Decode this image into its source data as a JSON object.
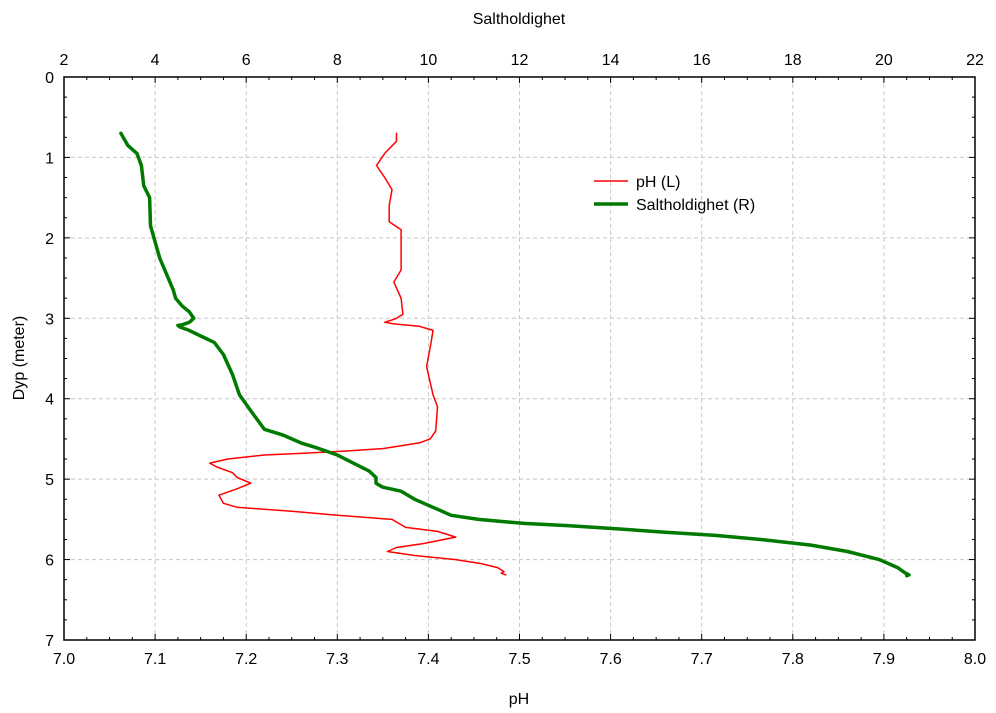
{
  "chart_data": {
    "type": "line",
    "title": "",
    "xlabel": "pH",
    "x2label": "Saltholdighet",
    "ylabel": "Dyp (meter)",
    "xlim": [
      7.0,
      8.0
    ],
    "x2lim": [
      2,
      22
    ],
    "ylim": [
      0,
      7
    ],
    "y_inverted": true,
    "grid": true,
    "legend_position": "top-right",
    "x_ticks": [
      "7.0",
      "7.1",
      "7.2",
      "7.3",
      "7.4",
      "7.5",
      "7.6",
      "7.7",
      "7.8",
      "7.9",
      "8.0"
    ],
    "x_ticks_values": [
      7.0,
      7.1,
      7.2,
      7.3,
      7.4,
      7.5,
      7.6,
      7.7,
      7.8,
      7.9,
      8.0
    ],
    "x2_ticks": [
      "2",
      "4",
      "6",
      "8",
      "10",
      "12",
      "14",
      "16",
      "18",
      "20",
      "22"
    ],
    "x2_ticks_values": [
      2,
      4,
      6,
      8,
      10,
      12,
      14,
      16,
      18,
      20,
      22
    ],
    "y_ticks": [
      "0",
      "1",
      "2",
      "3",
      "4",
      "5",
      "6",
      "7"
    ],
    "y_ticks_values": [
      0,
      1,
      2,
      3,
      4,
      5,
      6,
      7
    ],
    "series": [
      {
        "name": "pH (L)",
        "axis": "bottom",
        "color": "#ff0000",
        "width": 1.5,
        "points": [
          [
            7.365,
            0.7
          ],
          [
            7.365,
            0.8
          ],
          [
            7.352,
            0.95
          ],
          [
            7.343,
            1.1
          ],
          [
            7.352,
            1.25
          ],
          [
            7.36,
            1.4
          ],
          [
            7.357,
            1.6
          ],
          [
            7.357,
            1.8
          ],
          [
            7.37,
            1.9
          ],
          [
            7.37,
            2.4
          ],
          [
            7.362,
            2.55
          ],
          [
            7.37,
            2.75
          ],
          [
            7.372,
            2.95
          ],
          [
            7.365,
            3.0
          ],
          [
            7.36,
            3.02
          ],
          [
            7.352,
            3.05
          ],
          [
            7.362,
            3.07
          ],
          [
            7.39,
            3.1
          ],
          [
            7.405,
            3.15
          ],
          [
            7.403,
            3.3
          ],
          [
            7.398,
            3.6
          ],
          [
            7.405,
            3.95
          ],
          [
            7.41,
            4.1
          ],
          [
            7.408,
            4.4
          ],
          [
            7.402,
            4.5
          ],
          [
            7.39,
            4.55
          ],
          [
            7.35,
            4.62
          ],
          [
            7.31,
            4.65
          ],
          [
            7.26,
            4.68
          ],
          [
            7.22,
            4.7
          ],
          [
            7.18,
            4.75
          ],
          [
            7.16,
            4.8
          ],
          [
            7.168,
            4.85
          ],
          [
            7.185,
            4.92
          ],
          [
            7.19,
            4.98
          ],
          [
            7.205,
            5.05
          ],
          [
            7.19,
            5.12
          ],
          [
            7.17,
            5.2
          ],
          [
            7.175,
            5.3
          ],
          [
            7.19,
            5.35
          ],
          [
            7.25,
            5.4
          ],
          [
            7.3,
            5.45
          ],
          [
            7.36,
            5.5
          ],
          [
            7.375,
            5.6
          ],
          [
            7.41,
            5.65
          ],
          [
            7.43,
            5.72
          ],
          [
            7.395,
            5.8
          ],
          [
            7.365,
            5.85
          ],
          [
            7.355,
            5.9
          ],
          [
            7.385,
            5.95
          ],
          [
            7.43,
            6.0
          ],
          [
            7.458,
            6.05
          ],
          [
            7.476,
            6.1
          ],
          [
            7.483,
            6.15
          ],
          [
            7.48,
            6.17
          ],
          [
            7.485,
            6.19
          ]
        ]
      },
      {
        "name": "Saltholdighet (R)",
        "axis": "top",
        "color": "#007a00",
        "width": 3.5,
        "points": [
          [
            3.25,
            0.7
          ],
          [
            3.4,
            0.85
          ],
          [
            3.6,
            0.95
          ],
          [
            3.7,
            1.1
          ],
          [
            3.75,
            1.35
          ],
          [
            3.88,
            1.5
          ],
          [
            3.9,
            1.85
          ],
          [
            4.0,
            2.05
          ],
          [
            4.1,
            2.25
          ],
          [
            4.25,
            2.45
          ],
          [
            4.4,
            2.65
          ],
          [
            4.45,
            2.75
          ],
          [
            4.6,
            2.85
          ],
          [
            4.75,
            2.92
          ],
          [
            4.85,
            3.0
          ],
          [
            4.75,
            3.05
          ],
          [
            4.6,
            3.08
          ],
          [
            4.5,
            3.09
          ],
          [
            4.55,
            3.11
          ],
          [
            4.75,
            3.15
          ],
          [
            5.0,
            3.22
          ],
          [
            5.3,
            3.3
          ],
          [
            5.5,
            3.45
          ],
          [
            5.7,
            3.7
          ],
          [
            5.85,
            3.95
          ],
          [
            6.1,
            4.15
          ],
          [
            6.4,
            4.38
          ],
          [
            6.8,
            4.45
          ],
          [
            7.2,
            4.55
          ],
          [
            7.6,
            4.62
          ],
          [
            8.0,
            4.7
          ],
          [
            8.35,
            4.8
          ],
          [
            8.7,
            4.9
          ],
          [
            8.85,
            4.98
          ],
          [
            8.85,
            5.05
          ],
          [
            9.0,
            5.1
          ],
          [
            9.4,
            5.15
          ],
          [
            9.7,
            5.25
          ],
          [
            10.1,
            5.35
          ],
          [
            10.5,
            5.45
          ],
          [
            11.1,
            5.5
          ],
          [
            12.1,
            5.55
          ],
          [
            13.1,
            5.58
          ],
          [
            14.2,
            5.62
          ],
          [
            15.2,
            5.66
          ],
          [
            16.3,
            5.7
          ],
          [
            17.3,
            5.75
          ],
          [
            18.4,
            5.82
          ],
          [
            19.2,
            5.9
          ],
          [
            19.9,
            6.0
          ],
          [
            20.3,
            6.1
          ],
          [
            20.45,
            6.16
          ],
          [
            20.55,
            6.19
          ],
          [
            20.5,
            6.2
          ]
        ]
      }
    ]
  }
}
